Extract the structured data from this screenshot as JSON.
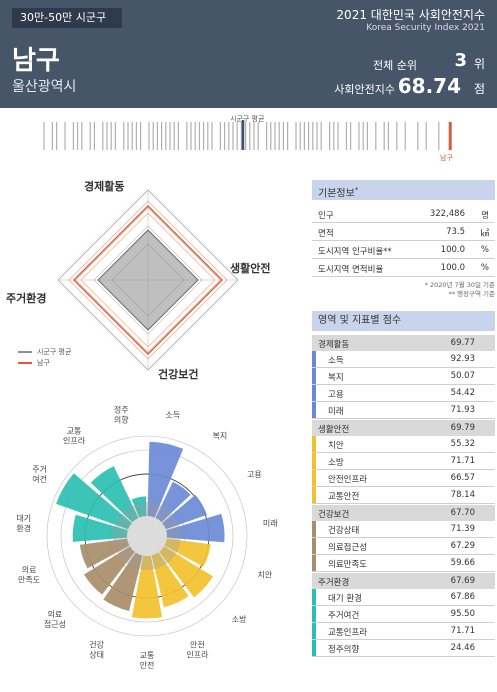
{
  "header": {
    "population_badge": "30만-50만 시군구",
    "year_title": "2021 대한민국 사회안전지수",
    "year_subtitle": "Korea Security Index 2021",
    "district": "남구",
    "city": "울산광역시",
    "rank_label": "전체 순위",
    "rank_value": "3",
    "rank_unit": "위",
    "index_label": "사회안전지수",
    "index_value": "68.74",
    "index_unit": "점"
  },
  "rank_strip": {
    "avg_label": "시군구 평균",
    "self_label": "남구",
    "colors": {
      "avg": "#3b4f7a",
      "self": "#e4572e",
      "others": "#b0b0b0"
    }
  },
  "radar": {
    "axes": [
      "경제활동",
      "생활안전",
      "건강보건",
      "주거환경"
    ],
    "legend": [
      {
        "label": "시군구 평균",
        "color": "#8a8ea8"
      },
      {
        "label": "남구",
        "color": "#e4572e"
      }
    ]
  },
  "basic_info": {
    "title": "기본정보",
    "title_mark": "*",
    "rows": [
      {
        "label": "인구",
        "value": "322,486",
        "unit": "명"
      },
      {
        "label": "면적",
        "value": "73.5",
        "unit": "㎢"
      },
      {
        "label": "도시지역 인구비율**",
        "value": "100.0",
        "unit": "%"
      },
      {
        "label": "도시지역 면적비율",
        "value": "100.0",
        "unit": "%"
      }
    ],
    "notes": [
      "* 2020년 7월 30일 기준",
      "** 행정구역 기준"
    ]
  },
  "scores": {
    "title": "영역 및 지표별 점수",
    "categories": [
      {
        "name": "경제활동",
        "score": "69.77",
        "color": "#6b8ad6",
        "items": [
          {
            "name": "소득",
            "score": "92.93"
          },
          {
            "name": "복지",
            "score": "50.07"
          },
          {
            "name": "고용",
            "score": "54.42"
          },
          {
            "name": "미래",
            "score": "71.93"
          }
        ]
      },
      {
        "name": "생활안전",
        "score": "69.79",
        "color": "#f2c12e",
        "items": [
          {
            "name": "치안",
            "score": "55.32"
          },
          {
            "name": "소방",
            "score": "71.71"
          },
          {
            "name": "안전인프라",
            "score": "66.57"
          },
          {
            "name": "교통안전",
            "score": "78.14"
          }
        ]
      },
      {
        "name": "건강보건",
        "score": "67.70",
        "color": "#a88e6a",
        "items": [
          {
            "name": "건강상태",
            "score": "71.39"
          },
          {
            "name": "의료접근성",
            "score": "67.29"
          },
          {
            "name": "의료만족도",
            "score": "59.66"
          }
        ]
      },
      {
        "name": "주거환경",
        "score": "67.69",
        "color": "#2bbfb3",
        "items": [
          {
            "name": "대기 환경",
            "score": "67.86"
          },
          {
            "name": "주거여건",
            "score": "95.50"
          },
          {
            "name": "교통인프라",
            "score": "71.71"
          },
          {
            "name": "정주의향",
            "score": "24.46"
          }
        ]
      }
    ]
  },
  "polar": {
    "labels": [
      "소득",
      "복지",
      "고용",
      "미래",
      "치안",
      "소방",
      "안전\n인프라",
      "교통\n안전",
      "건강\n상태",
      "의료\n접근성",
      "의료\n만족도",
      "대기\n환경",
      "주거\n여건",
      "교통\n인프라",
      "정주\n의향"
    ]
  }
}
